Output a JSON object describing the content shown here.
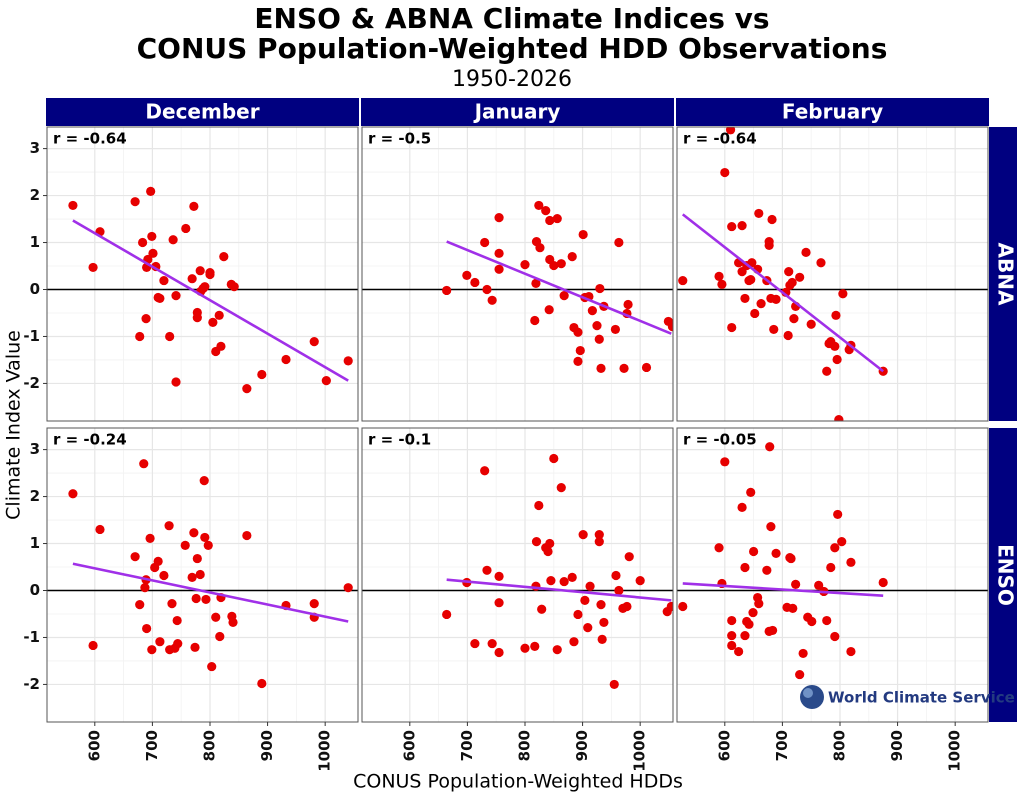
{
  "title": [
    "ENSO & ABNA Climate Indices vs",
    "CONUS Population-Weighted HDD Observations"
  ],
  "subtitle": "1950-2026",
  "xlabel": "CONUS Population-Weighted HDDs",
  "ylabel": "Climate Index Value",
  "logo": "World Climate Service",
  "chart_data": [
    {
      "type": "scatter",
      "column": "December",
      "row": "ABNA",
      "annotation": "r = -0.64",
      "color": "#e60000",
      "trend_color": "#a030e8",
      "x": [
        562,
        597,
        609,
        670,
        678,
        683,
        689,
        690,
        692,
        697,
        699,
        701,
        706,
        710,
        713,
        720,
        730,
        736,
        741,
        741,
        758,
        769,
        772,
        778,
        778,
        783,
        784,
        788,
        791,
        800,
        800,
        805,
        810,
        816,
        819,
        824,
        837,
        842,
        864,
        890,
        932,
        981,
        1002,
        1040
      ],
      "y": [
        1.79,
        0.47,
        1.23,
        1.87,
        -1.0,
        1.0,
        -0.62,
        0.47,
        0.64,
        2.09,
        1.13,
        0.77,
        0.49,
        -0.17,
        -0.19,
        0.19,
        -1.0,
        1.06,
        -0.13,
        -1.97,
        1.3,
        0.23,
        1.77,
        -0.49,
        -0.6,
        0.4,
        -0.04,
        0.02,
        0.06,
        0.32,
        0.36,
        -0.7,
        -1.32,
        -0.55,
        -1.21,
        0.7,
        0.11,
        0.06,
        -2.11,
        -1.81,
        -1.49,
        -1.11,
        -1.94,
        -1.52
      ],
      "trend": {
        "x": [
          562,
          1040
        ],
        "y": [
          1.47,
          -1.94
        ]
      },
      "hline": 0,
      "xlim": [
        517,
        1057
      ],
      "ylim": [
        -2.8,
        3.46
      ],
      "xticks": [
        600,
        700,
        800,
        900,
        1000
      ],
      "yticks": [
        -2,
        -1,
        0,
        1,
        2,
        3
      ],
      "grid": true
    },
    {
      "type": "scatter",
      "column": "January",
      "row": "ABNA",
      "annotation": "r = -0.5",
      "color": "#e60000",
      "trend_color": "#a030e8",
      "x": [
        664,
        699,
        713,
        730,
        734,
        743,
        755,
        755,
        755,
        800,
        817,
        819,
        820,
        824,
        826,
        836,
        843,
        842,
        843,
        850,
        856,
        863,
        868,
        882,
        885,
        892,
        892,
        896,
        901,
        904,
        911,
        917,
        925,
        929,
        930,
        932,
        937,
        957,
        963,
        972,
        979,
        977,
        1011,
        1049,
        1056
      ],
      "y": [
        -0.02,
        0.3,
        0.15,
        1.0,
        0.0,
        -0.23,
        1.53,
        0.43,
        0.77,
        0.53,
        -0.66,
        0.13,
        1.02,
        1.79,
        0.89,
        1.68,
        0.64,
        -0.43,
        1.47,
        0.51,
        1.51,
        0.55,
        -0.13,
        0.7,
        -0.81,
        -0.91,
        -1.53,
        -1.3,
        1.17,
        -0.17,
        -0.15,
        -0.45,
        -0.77,
        -1.06,
        0.02,
        -1.68,
        -0.36,
        -0.85,
        1.0,
        -1.68,
        -0.32,
        -0.51,
        -1.66,
        -0.68,
        -0.79
      ],
      "trend": {
        "x": [
          664,
          1054
        ],
        "y": [
          1.02,
          -0.94
        ]
      },
      "hline": 0,
      "xlim": [
        517,
        1057
      ],
      "ylim": [
        -2.8,
        3.46
      ],
      "xticks": [
        600,
        700,
        800,
        900,
        1000
      ],
      "yticks": [
        -2,
        -1,
        0,
        1,
        2,
        3
      ],
      "grid": true
    },
    {
      "type": "scatter",
      "column": "February",
      "row": "ABNA",
      "annotation": "r = -0.64",
      "color": "#e60000",
      "trend_color": "#a030e8",
      "x": [
        527,
        590,
        595,
        600,
        612,
        610,
        612,
        624,
        630,
        630,
        635,
        638,
        642,
        645,
        647,
        652,
        657,
        659,
        663,
        673,
        677,
        677,
        680,
        682,
        685,
        689,
        706,
        710,
        711,
        713,
        717,
        720,
        723,
        730,
        741,
        750,
        767,
        777,
        781,
        784,
        791,
        793,
        795,
        798,
        805,
        816,
        819,
        875
      ],
      "y": [
        0.19,
        0.28,
        0.11,
        2.49,
        1.34,
        3.4,
        -0.81,
        0.57,
        1.36,
        0.38,
        -0.19,
        0.51,
        0.19,
        0.21,
        0.57,
        -0.51,
        0.43,
        1.62,
        -0.3,
        0.19,
        0.94,
        1.02,
        -0.19,
        1.49,
        -0.85,
        -0.21,
        -0.06,
        -0.98,
        0.38,
        0.09,
        0.15,
        -0.62,
        -0.36,
        0.26,
        0.79,
        -0.74,
        0.57,
        -1.74,
        -1.15,
        -1.11,
        -1.21,
        -0.55,
        -1.49,
        -2.77,
        -0.09,
        -1.28,
        -1.19,
        -1.74
      ],
      "trend": {
        "x": [
          527,
          875
        ],
        "y": [
          1.6,
          -1.74
        ]
      },
      "hline": 0,
      "xlim": [
        517,
        1057
      ],
      "ylim": [
        -2.8,
        3.46
      ],
      "xticks": [
        600,
        700,
        800,
        900,
        1000
      ],
      "yticks": [
        -2,
        -1,
        0,
        1,
        2,
        3
      ],
      "grid": true
    },
    {
      "type": "scatter",
      "column": "December",
      "row": "ENSO",
      "annotation": "r = -0.24",
      "color": "#e60000",
      "trend_color": "#a030e8",
      "x": [
        562,
        597,
        609,
        670,
        678,
        685,
        687,
        689,
        690,
        696,
        699,
        704,
        710,
        713,
        720,
        729,
        730,
        734,
        739,
        743,
        744,
        757,
        769,
        772,
        774,
        776,
        778,
        783,
        790,
        791,
        793,
        797,
        803,
        810,
        817,
        819,
        838,
        840,
        864,
        890,
        932,
        981,
        981,
        1040
      ],
      "y": [
        2.06,
        -1.17,
        1.3,
        0.72,
        -0.3,
        2.7,
        0.06,
        0.23,
        -0.81,
        1.11,
        -1.26,
        0.49,
        0.62,
        -1.09,
        0.32,
        1.38,
        -1.26,
        -0.28,
        -1.23,
        -0.64,
        -1.13,
        0.96,
        0.28,
        1.23,
        -1.21,
        -0.17,
        0.68,
        0.34,
        2.34,
        1.13,
        -0.19,
        0.96,
        -1.62,
        -0.57,
        -0.98,
        -0.15,
        -0.55,
        -0.68,
        1.17,
        -1.98,
        -0.32,
        -0.28,
        -0.57,
        0.06
      ],
      "trend": {
        "x": [
          562,
          1040
        ],
        "y": [
          0.57,
          -0.66
        ]
      },
      "hline": 0,
      "xlim": [
        517,
        1057
      ],
      "ylim": [
        -2.8,
        3.46
      ],
      "xticks": [
        600,
        700,
        800,
        900,
        1000
      ],
      "yticks": [
        -2,
        -1,
        0,
        1,
        2,
        3
      ],
      "grid": true
    },
    {
      "type": "scatter",
      "column": "January",
      "row": "ENSO",
      "annotation": "r = -0.1",
      "color": "#e60000",
      "trend_color": "#a030e8",
      "x": [
        664,
        699,
        713,
        730,
        734,
        743,
        755,
        755,
        755,
        800,
        817,
        819,
        820,
        824,
        829,
        836,
        840,
        843,
        845,
        850,
        856,
        863,
        868,
        882,
        885,
        892,
        901,
        904,
        909,
        913,
        929,
        929,
        932,
        934,
        937,
        955,
        958,
        963,
        970,
        977,
        981,
        1000,
        1047,
        1054
      ],
      "y": [
        -0.51,
        0.17,
        -1.13,
        2.55,
        0.43,
        -1.13,
        -1.32,
        -0.26,
        0.3,
        -1.23,
        -1.19,
        0.09,
        1.04,
        1.81,
        -0.4,
        0.91,
        0.83,
        1.0,
        0.21,
        2.81,
        -1.26,
        2.19,
        0.19,
        0.28,
        -1.09,
        -0.51,
        1.19,
        -0.21,
        -0.79,
        0.09,
        1.04,
        1.19,
        -0.3,
        -1.04,
        -0.68,
        -2.0,
        0.32,
        0.0,
        -0.38,
        -0.34,
        0.72,
        0.21,
        -0.45,
        -0.34
      ],
      "trend": {
        "x": [
          664,
          1054
        ],
        "y": [
          0.23,
          -0.21
        ]
      },
      "hline": 0,
      "xlim": [
        517,
        1057
      ],
      "ylim": [
        -2.8,
        3.46
      ],
      "xticks": [
        600,
        700,
        800,
        900,
        1000
      ],
      "yticks": [
        -2,
        -1,
        0,
        1,
        2,
        3
      ],
      "grid": true
    },
    {
      "type": "scatter",
      "column": "February",
      "row": "ENSO",
      "annotation": "r = -0.05",
      "color": "#e60000",
      "trend_color": "#a030e8",
      "x": [
        527,
        590,
        595,
        600,
        612,
        612,
        612,
        624,
        630,
        635,
        635,
        638,
        642,
        645,
        649,
        650,
        657,
        659,
        673,
        677,
        678,
        680,
        683,
        689,
        708,
        713,
        715,
        718,
        723,
        730,
        736,
        744,
        751,
        763,
        772,
        777,
        784,
        791,
        791,
        796,
        803,
        819,
        819,
        875
      ],
      "y": [
        -0.34,
        0.91,
        0.15,
        2.74,
        -0.96,
        -0.64,
        -1.17,
        -1.3,
        1.77,
        0.49,
        -0.96,
        -0.66,
        -0.72,
        2.09,
        -0.47,
        0.83,
        -0.15,
        -0.28,
        0.43,
        -0.87,
        3.06,
        1.36,
        -0.85,
        0.79,
        -0.36,
        0.7,
        0.68,
        -0.38,
        0.13,
        -1.79,
        -1.34,
        -0.57,
        -0.66,
        0.11,
        -0.02,
        -0.64,
        0.49,
        -0.98,
        0.91,
        1.62,
        1.04,
        -1.3,
        0.6,
        0.17
      ],
      "trend": {
        "x": [
          527,
          875
        ],
        "y": [
          0.15,
          -0.11
        ]
      },
      "hline": 0,
      "xlim": [
        517,
        1057
      ],
      "ylim": [
        -2.8,
        3.46
      ],
      "xticks": [
        600,
        700,
        800,
        900,
        1000
      ],
      "yticks": [
        -2,
        -1,
        0,
        1,
        2,
        3
      ],
      "grid": true
    }
  ]
}
